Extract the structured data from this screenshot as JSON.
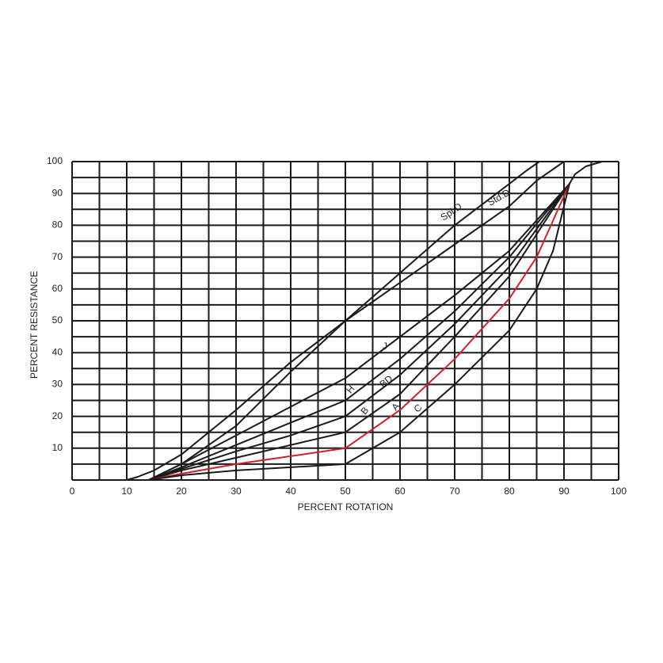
{
  "chart_data": {
    "type": "line",
    "x_label": "PERCENT ROTATION",
    "y_label": "PERCENT RESISTANCE",
    "xlim": [
      0,
      100
    ],
    "ylim": [
      0,
      100
    ],
    "xticks": [
      0,
      10,
      20,
      30,
      40,
      50,
      60,
      70,
      80,
      90,
      100
    ],
    "yticks": [
      10,
      20,
      30,
      40,
      50,
      60,
      70,
      80,
      90,
      100
    ],
    "xgrid": [
      0,
      5,
      10,
      15,
      20,
      25,
      30,
      35,
      40,
      45,
      50,
      55,
      60,
      65,
      70,
      75,
      80,
      85,
      90,
      95,
      100
    ],
    "ygrid": [
      0,
      5,
      10,
      15,
      20,
      25,
      30,
      35,
      40,
      45,
      50,
      55,
      60,
      65,
      70,
      75,
      80,
      85,
      90,
      95,
      100
    ],
    "grid": true,
    "series": [
      {
        "name": "Spl.D",
        "color": "#1a1a1a",
        "x": [
          10,
          12,
          15,
          20,
          30,
          40,
          50,
          60,
          70,
          80,
          83,
          85.5
        ],
        "values": [
          0,
          1,
          3,
          8,
          22,
          37,
          50,
          65,
          80,
          93,
          97,
          100
        ]
      },
      {
        "name": "Std.D",
        "color": "#1a1a1a",
        "x": [
          14,
          20,
          25,
          30,
          40,
          50,
          60,
          70,
          80,
          85,
          90
        ],
        "values": [
          0,
          5,
          11,
          17,
          34,
          50,
          62,
          74,
          86,
          94,
          100
        ]
      },
      {
        "name": "J",
        "color": "#1a1a1a",
        "x": [
          14,
          20,
          30,
          40,
          50,
          60,
          70,
          80,
          91
        ],
        "values": [
          0,
          5,
          14,
          23,
          32,
          45,
          58,
          72,
          93
        ]
      },
      {
        "name": "H",
        "color": "#1a1a1a",
        "x": [
          14,
          20,
          30,
          40,
          50,
          60,
          70,
          80,
          91
        ],
        "values": [
          0,
          4,
          11,
          18,
          25,
          38,
          53,
          70,
          93
        ]
      },
      {
        "name": "BD",
        "color": "#1a1a1a",
        "x": [
          14,
          20,
          30,
          40,
          50,
          60,
          70,
          80,
          91
        ],
        "values": [
          0,
          3.5,
          9,
          14,
          20,
          33,
          49,
          67,
          93
        ]
      },
      {
        "name": "B",
        "color": "#1a1a1a",
        "x": [
          14,
          20,
          30,
          40,
          50,
          60,
          70,
          80,
          91
        ],
        "values": [
          0,
          3,
          7,
          11,
          15,
          27,
          45,
          64,
          93
        ]
      },
      {
        "name": "A",
        "color": "#d0212a",
        "x": [
          14,
          20,
          30,
          40,
          50,
          60,
          70,
          80,
          85,
          91
        ],
        "values": [
          0,
          2,
          5,
          7.5,
          10,
          22,
          38,
          57,
          70,
          93
        ]
      },
      {
        "name": "C",
        "color": "#1a1a1a",
        "x": [
          14,
          20,
          30,
          40,
          50,
          60,
          70,
          80,
          85,
          88,
          91,
          92,
          94,
          97
        ],
        "values": [
          0,
          1.5,
          3,
          4,
          5,
          15,
          30,
          47,
          60,
          72,
          93,
          96,
          98.5,
          100
        ]
      }
    ]
  }
}
